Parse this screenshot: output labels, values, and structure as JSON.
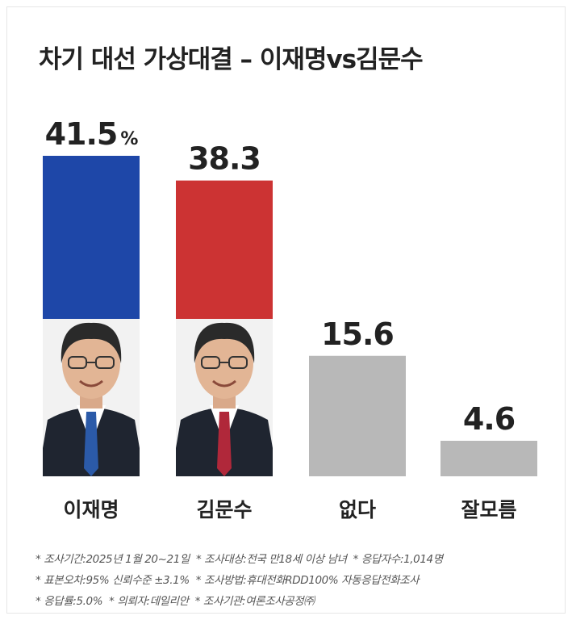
{
  "title": "차기 대선 가상대결 – 이재명vs김문수",
  "colors": {
    "lee": "#1e47a8",
    "kim": "#cc3333",
    "none": "#b8b8b8",
    "unknown": "#b8b8b8"
  },
  "chart_data": {
    "type": "bar",
    "title": "차기 대선 가상대결 – 이재명vs김문수",
    "categories": [
      "이재명",
      "김문수",
      "없다",
      "잘모름"
    ],
    "values": [
      41.5,
      38.3,
      15.6,
      4.6
    ],
    "value_labels": [
      "41.5",
      "38.3",
      "15.6",
      "4.6"
    ],
    "first_value_unit": "%",
    "photos": [
      "person-photo",
      "person-photo",
      null,
      null
    ],
    "ylim": [
      0,
      41.5
    ],
    "grid": false,
    "xlabel": "",
    "ylabel": ""
  },
  "footnotes": [
    [
      "* 조사기간:2025년 1월 20~21일",
      "* 조사대상:전국 만18세 이상 남녀",
      "* 응답자수:1,014명"
    ],
    [
      "* 표본오차:95% 신뢰수준 ±3.1%",
      "* 조사방법:휴대전화RDD100% 자동응답전화조사"
    ],
    [
      "* 응답률:5.0%",
      "* 의뢰자:데일리안",
      "* 조사기관:여론조사공정㈜"
    ]
  ]
}
